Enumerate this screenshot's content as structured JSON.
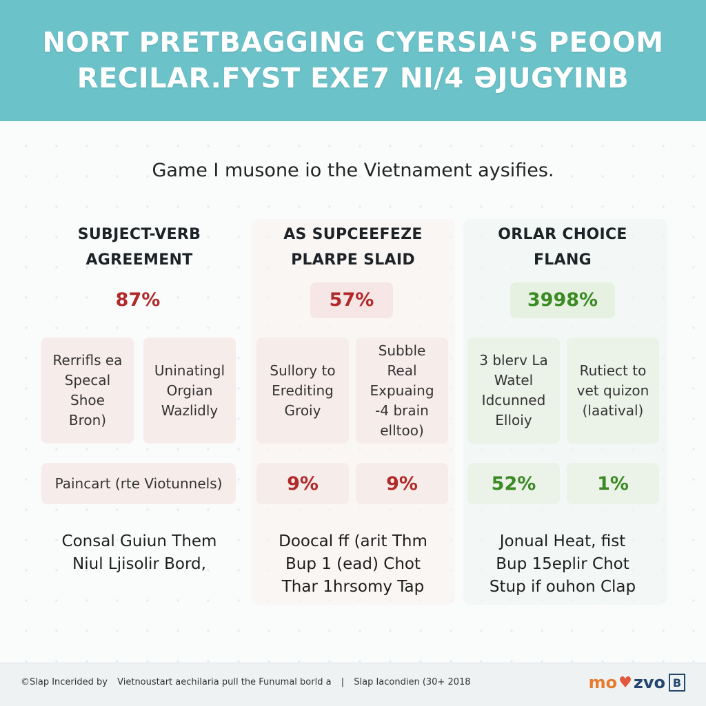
{
  "header": {
    "line1": "NORT PRETBAGGING CYERSIA'S PEOOM",
    "line2": "RECILAR.FYST EXE7 NI/4 ƏJUGYINB"
  },
  "subtitle": "Game I musone io the Vietnament aysifies.",
  "columns": [
    {
      "title_lines": [
        "SUBJECT-VERB",
        "AGREEMENT"
      ],
      "percent": "87%",
      "cards": [
        [
          "Rerrifls ea",
          "Specal",
          "Shoe",
          "Bron)"
        ],
        [
          "Uninatingl",
          "Orgian",
          "Wazlidly"
        ]
      ],
      "wide_card": "Paincart (rte Viotunnels)",
      "footer_lines": [
        "Consal Guiun Them",
        "Niul Ljisolir Bord,"
      ]
    },
    {
      "title_lines": [
        "AS SUPCEEFEZE",
        "PLARPE SLAID"
      ],
      "percent": "57%",
      "cards": [
        [
          "Sullory to",
          "Erediting",
          "Groiy"
        ],
        [
          "Subble",
          "Real",
          "Expuaing",
          "-4 brain",
          "elltoo)"
        ]
      ],
      "small_percents": [
        "9%",
        "9%"
      ],
      "footer_lines": [
        "Doocal ff (arit Thm",
        "Bup 1 (ead) Chot",
        "Thar 1hrsomy Tap"
      ]
    },
    {
      "title_lines": [
        "ORLAR CHOICE",
        "FLANG"
      ],
      "percent": "3998%",
      "cards": [
        [
          "3 blerv La",
          "Watel",
          "Idcunned",
          "Elloiy"
        ],
        [
          "Rutiect to",
          "vet quizon",
          "(laatival)"
        ]
      ],
      "small_percents": [
        "52%",
        "1%"
      ],
      "footer_lines": [
        "Jonual Heat, fist",
        "Bup 15eplir Chot",
        "Stup if ouhon Clap"
      ]
    }
  ],
  "footer": {
    "left": "©Slap Incerided by",
    "middle": "Vietnoustart aechilaria pull the Funumal borld a",
    "right": "Slap Iacondien (30+ 2018",
    "logo_orange": "mo",
    "logo_heart": "♥",
    "logo_navy": "zvo",
    "logo_box": "B"
  },
  "colors": {
    "banner": "#6cc2c9",
    "red": "#b02a2a",
    "green": "#3b8a24"
  }
}
